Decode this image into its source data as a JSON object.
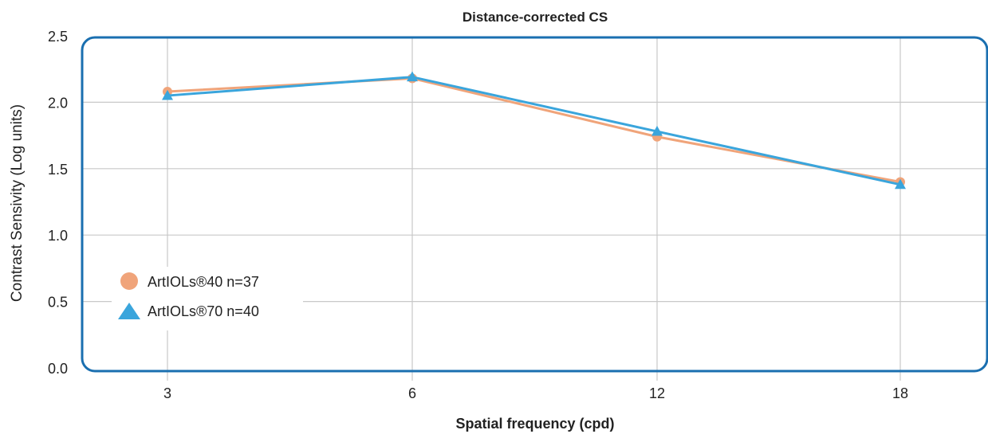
{
  "chart_data": {
    "type": "line",
    "title": "Distance-corrected CS",
    "xlabel": "Spatial frequency (cpd)",
    "ylabel": "Contrast Sensivity (Log units)",
    "categories": [
      "3",
      "6",
      "12",
      "18"
    ],
    "ylim": [
      0,
      2.5
    ],
    "yticks": [
      "0.0",
      "0.5",
      "1.0",
      "1.5",
      "2.0",
      "2.5"
    ],
    "grid": true,
    "legend_position": "bottom-left",
    "series": [
      {
        "name": "ArtIOLs®40 n=37",
        "marker": "circle",
        "color": "#f0a47a",
        "values": [
          2.08,
          2.18,
          1.74,
          1.4
        ]
      },
      {
        "name": "ArtIOLs®70 n=40",
        "marker": "triangle",
        "color": "#3aa5dc",
        "values": [
          2.05,
          2.19,
          1.78,
          1.38
        ]
      }
    ],
    "frame_color": "#1a6fb0"
  }
}
